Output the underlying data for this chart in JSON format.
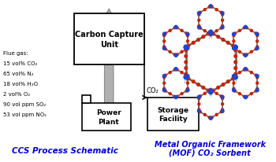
{
  "bg_color": "#ffffff",
  "flue_gas_lines": [
    "Flue gas:",
    "15 vol% CO₂",
    "65 vol% N₂",
    "18 vol% H₂O",
    "2 vol% O₂",
    "90 vol ppm SO₂",
    "53 vol ppm NO₂"
  ],
  "ccu_label": "Carbon Capture\nUnit",
  "power_label": "Power\nPlant",
  "storage_label": "Storage\nFacility",
  "co2_label": "CO₂",
  "title_left": "CCS Process Schematic",
  "title_right_line1": "Metal Organic Framework",
  "title_right_line2": "(MOF) CO₂ Sorbent",
  "title_color": "#0000dd",
  "box_color": "#000000",
  "arrow_gray": "#b0b0b0",
  "arrow_dark": "#888888",
  "text_color": "#000000",
  "red_atom": "#cc2200",
  "blue_atom": "#2244cc",
  "gray_rod": "#666666"
}
